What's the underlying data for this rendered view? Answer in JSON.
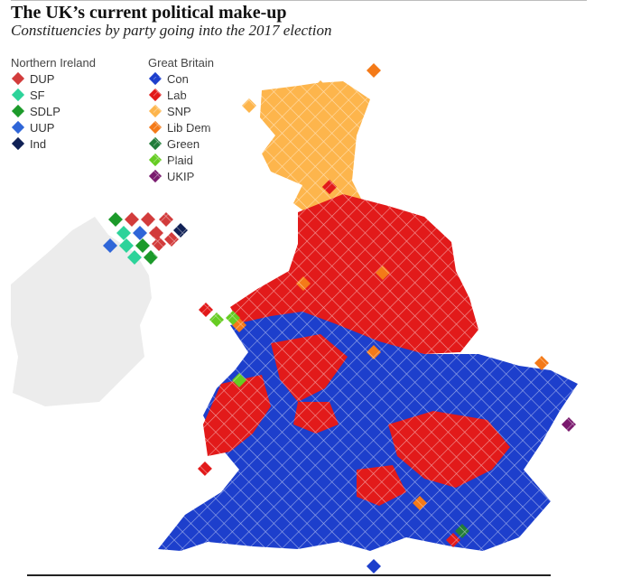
{
  "title": "The UK’s current political make-up",
  "subtitle": "Constituencies by party going into the 2017 election",
  "legend": {
    "northern_ireland": {
      "heading": "Northern Ireland",
      "items": [
        {
          "label": "DUP",
          "color": "#d23c3c"
        },
        {
          "label": "SF",
          "color": "#2dd39a"
        },
        {
          "label": "SDLP",
          "color": "#1c9a2a"
        },
        {
          "label": "UUP",
          "color": "#2f66d8"
        },
        {
          "label": "Ind",
          "color": "#102156"
        }
      ]
    },
    "great_britain": {
      "heading": "Great Britain",
      "items": [
        {
          "label": "Con",
          "color": "#1d3fcc"
        },
        {
          "label": "Lab",
          "color": "#e21a1a"
        },
        {
          "label": "SNP",
          "color": "#fdb54c"
        },
        {
          "label": "Lib Dem",
          "color": "#f47a18"
        },
        {
          "label": "Green",
          "color": "#227c3a"
        },
        {
          "label": "Plaid",
          "color": "#66cc22"
        },
        {
          "label": "UKIP",
          "color": "#7a1a6e"
        }
      ]
    }
  },
  "map_colors": {
    "ireland_land": "#ececec",
    "tile_border": "#ffffff"
  }
}
